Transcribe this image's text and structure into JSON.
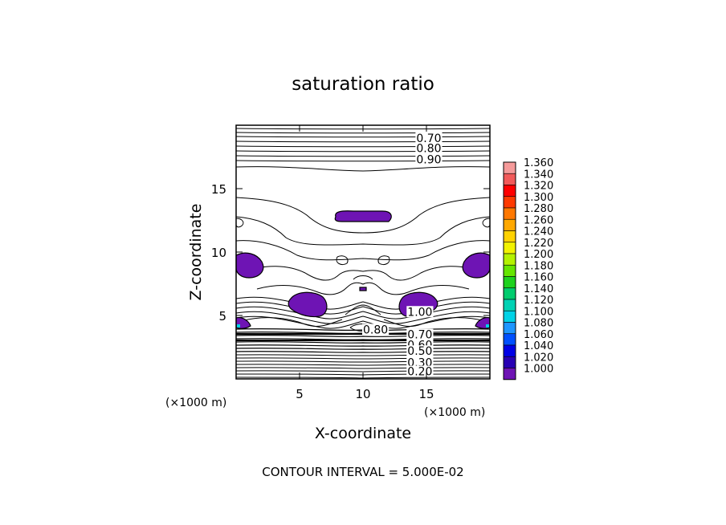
{
  "chart_data": {
    "type": "contour",
    "title": "saturation ratio",
    "xlabel": "X-coordinate",
    "ylabel": "Z-coordinate",
    "x_unit": "(×1000 m)",
    "y_unit": "(×1000 m)",
    "xlim": [
      0,
      20
    ],
    "ylim": [
      0,
      20
    ],
    "x_ticks": [
      5,
      10,
      15
    ],
    "y_ticks": [
      5,
      10,
      15
    ],
    "footer": "CONTOUR INTERVAL = 5.000E-02",
    "contour_labels": [
      {
        "text": "0.70",
        "x": 14.2,
        "y": 19.0
      },
      {
        "text": "0.80",
        "x": 14.2,
        "y": 18.2
      },
      {
        "text": "0.90",
        "x": 14.2,
        "y": 17.3
      },
      {
        "text": "1.00",
        "x": 13.5,
        "y": 5.3
      },
      {
        "text": "0.80",
        "x": 10.0,
        "y": 3.9
      },
      {
        "text": "0.70",
        "x": 13.5,
        "y": 3.5
      },
      {
        "text": "0.60",
        "x": 13.5,
        "y": 2.7
      },
      {
        "text": "0.50",
        "x": 13.5,
        "y": 2.2
      },
      {
        "text": "0.30",
        "x": 13.5,
        "y": 1.3
      },
      {
        "text": "0.20",
        "x": 13.5,
        "y": 0.6
      }
    ],
    "filled_regions": [
      {
        "level": "1.000-1.020",
        "center": [
          10.0,
          12.7
        ]
      },
      {
        "level": "1.000-1.020",
        "center": [
          1.2,
          9.1
        ]
      },
      {
        "level": "1.000-1.020",
        "center": [
          18.8,
          9.1
        ]
      },
      {
        "level": "1.000-1.020",
        "center": [
          5.7,
          5.9
        ]
      },
      {
        "level": "1.000-1.020",
        "center": [
          14.3,
          5.9
        ]
      },
      {
        "level": "1.000-1.020",
        "center": [
          0.7,
          4.5
        ]
      },
      {
        "level": "1.000-1.020",
        "center": [
          19.3,
          4.5
        ]
      }
    ],
    "colorbar": {
      "labels": [
        "1.360",
        "1.340",
        "1.320",
        "1.300",
        "1.280",
        "1.260",
        "1.240",
        "1.220",
        "1.200",
        "1.180",
        "1.160",
        "1.140",
        "1.120",
        "1.100",
        "1.080",
        "1.060",
        "1.040",
        "1.020",
        "1.000"
      ],
      "colors": [
        "#f59a9a",
        "#f25a5a",
        "#ff0000",
        "#ff3a00",
        "#ff7800",
        "#ffa800",
        "#ffd200",
        "#f2f200",
        "#b4f200",
        "#66e600",
        "#1ed21e",
        "#00cc6e",
        "#00d2b4",
        "#00d2e6",
        "#1e96ff",
        "#0050ff",
        "#0000e6",
        "#2800b4",
        "#6e14b4"
      ]
    }
  }
}
